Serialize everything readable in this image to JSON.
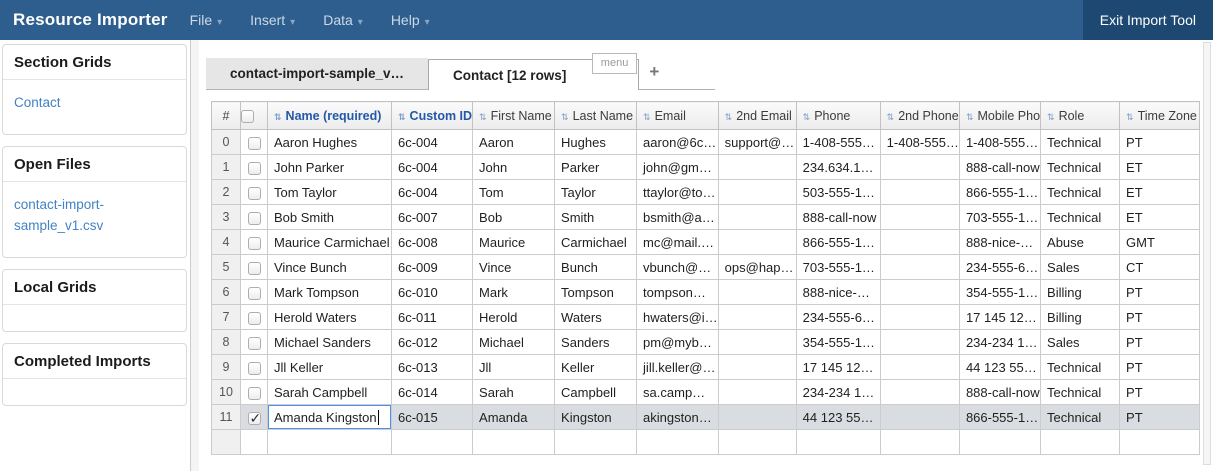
{
  "navbar": {
    "brand": "Resource Importer",
    "menus": [
      {
        "label": "File"
      },
      {
        "label": "Insert"
      },
      {
        "label": "Data"
      },
      {
        "label": "Help"
      }
    ],
    "exit_button": "Exit Import Tool"
  },
  "sidebar": {
    "sections": [
      {
        "title": "Section Grids",
        "items": [
          {
            "label": "Contact"
          }
        ]
      },
      {
        "title": "Open Files",
        "items": [
          {
            "label": "contact-import-sample_v1.csv"
          }
        ]
      },
      {
        "title": "Local Grids",
        "items": []
      },
      {
        "title": "Completed Imports",
        "items": []
      }
    ]
  },
  "tabs": {
    "items": [
      {
        "label": "contact-import-sample_v…",
        "active": false
      },
      {
        "label": "Contact [12 rows]",
        "active": true
      }
    ],
    "menu_button": "menu",
    "add_button": "+"
  },
  "grid": {
    "columns": [
      {
        "label": "#",
        "type": "index"
      },
      {
        "type": "checkbox"
      },
      {
        "label": "Name (required)",
        "mapped": true
      },
      {
        "label": "Custom ID",
        "mapped": true
      },
      {
        "label": "First Name"
      },
      {
        "label": "Last Name"
      },
      {
        "label": "Email"
      },
      {
        "label": "2nd Email"
      },
      {
        "label": "Phone"
      },
      {
        "label": "2nd Phone"
      },
      {
        "label": "Mobile Pho"
      },
      {
        "label": "Role"
      },
      {
        "label": "Time Zone"
      }
    ],
    "rows": [
      {
        "index": 0,
        "checked": false,
        "selected": false,
        "cells": [
          "Aaron Hughes",
          "6c-004",
          "Aaron",
          "Hughes",
          "aaron@6c…",
          "support@…",
          "1-408-555…",
          "1-408-555…",
          "1-408-555…",
          "Technical",
          "PT"
        ]
      },
      {
        "index": 1,
        "checked": false,
        "selected": false,
        "cells": [
          "John Parker",
          "6c-004",
          "John",
          "Parker",
          "john@gm…",
          "",
          "234.634.1…",
          "",
          "888-call-now",
          "Technical",
          "ET"
        ]
      },
      {
        "index": 2,
        "checked": false,
        "selected": false,
        "cells": [
          "Tom Taylor",
          "6c-004",
          "Tom",
          "Taylor",
          "ttaylor@to…",
          "",
          "503-555-1…",
          "",
          "866-555-1…",
          "Technical",
          "ET"
        ]
      },
      {
        "index": 3,
        "checked": false,
        "selected": false,
        "cells": [
          "Bob Smith",
          "6c-007",
          "Bob",
          "Smith",
          "bsmith@a…",
          "",
          "888-call-now",
          "",
          "703-555-1…",
          "Technical",
          "ET"
        ]
      },
      {
        "index": 4,
        "checked": false,
        "selected": false,
        "cells": [
          "Maurice Carmichael",
          "6c-008",
          "Maurice",
          "Carmichael",
          "mc@mail.…",
          "",
          "866-555-1…",
          "",
          "888-nice-…",
          "Abuse",
          "GMT"
        ]
      },
      {
        "index": 5,
        "checked": false,
        "selected": false,
        "cells": [
          "Vince Bunch",
          "6c-009",
          "Vince",
          "Bunch",
          "vbunch@…",
          "ops@hap…",
          "703-555-1…",
          "",
          "234-555-6…",
          "Sales",
          "CT"
        ]
      },
      {
        "index": 6,
        "checked": false,
        "selected": false,
        "cells": [
          "Mark Tompson",
          "6c-010",
          "Mark",
          "Tompson",
          "tompson…",
          "",
          "888-nice-…",
          "",
          "354-555-1…",
          "Billing",
          "PT"
        ]
      },
      {
        "index": 7,
        "checked": false,
        "selected": false,
        "cells": [
          "Herold Waters",
          "6c-011",
          "Herold",
          "Waters",
          "hwaters@i…",
          "",
          "234-555-6…",
          "",
          "17 145 12…",
          "Billing",
          "PT"
        ]
      },
      {
        "index": 8,
        "checked": false,
        "selected": false,
        "cells": [
          "Michael Sanders",
          "6c-012",
          "Michael",
          "Sanders",
          "pm@myb…",
          "",
          "354-555-1…",
          "",
          "234-234 1…",
          "Sales",
          "PT"
        ]
      },
      {
        "index": 9,
        "checked": false,
        "selected": false,
        "cells": [
          "Jll Keller",
          "6c-013",
          "Jll",
          "Keller",
          "jill.keller@…",
          "",
          "17 145 12…",
          "",
          "44 123 55…",
          "Technical",
          "PT"
        ]
      },
      {
        "index": 10,
        "checked": false,
        "selected": false,
        "cells": [
          "Sarah Campbell",
          "6c-014",
          "Sarah",
          "Campbell",
          "sa.camp…",
          "",
          "234-234 1…",
          "",
          "888-call-now",
          "Technical",
          "PT"
        ]
      },
      {
        "index": 11,
        "checked": true,
        "selected": true,
        "cells": [
          "Amanda Kingston",
          "6c-015",
          "Amanda",
          "Kingston",
          "akingston…",
          "",
          "44 123 55…",
          "",
          "866-555-1…",
          "Technical",
          "PT"
        ]
      }
    ],
    "editing": {
      "row_index": 11,
      "column": "Name (required)",
      "value": "Amanda Kingston"
    },
    "has_empty_trailing_row": true
  },
  "colors": {
    "navbar_bg": "#2d5e8e",
    "exit_button_bg": "#1c4872",
    "link_blue": "#4183c4",
    "mapped_header_blue": "#2458a8",
    "selected_row_bg": "#d9dde2",
    "edit_border_blue": "#4a90f2"
  }
}
